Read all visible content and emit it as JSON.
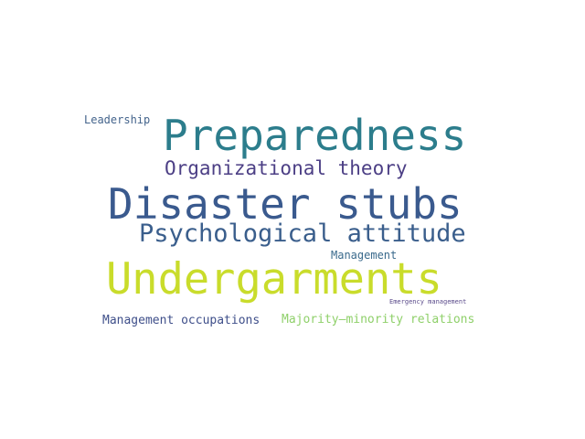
{
  "words": [
    {
      "id": "leadership",
      "text": "Leadership",
      "color": "#44648c"
    },
    {
      "id": "preparedness",
      "text": "Preparedness",
      "color": "#2c7d8c"
    },
    {
      "id": "organizational-theory",
      "text": "Organizational theory",
      "color": "#4c3f85"
    },
    {
      "id": "disaster-stubs",
      "text": "Disaster stubs",
      "color": "#3a5a8e"
    },
    {
      "id": "psychological-attitude",
      "text": "Psychological attitude",
      "color": "#3a5e8c"
    },
    {
      "id": "management",
      "text": "Management",
      "color": "#3a6a8c"
    },
    {
      "id": "undergarments",
      "text": "Undergarments",
      "color": "#c9dc2b"
    },
    {
      "id": "emergency-management",
      "text": "Emergency management",
      "color": "#5a4a8a"
    },
    {
      "id": "management-occupations",
      "text": "Management occupations",
      "color": "#3f4f8a"
    },
    {
      "id": "majority-minority-relations",
      "text": "Majority–minority relations",
      "color": "#8fd06a"
    }
  ]
}
